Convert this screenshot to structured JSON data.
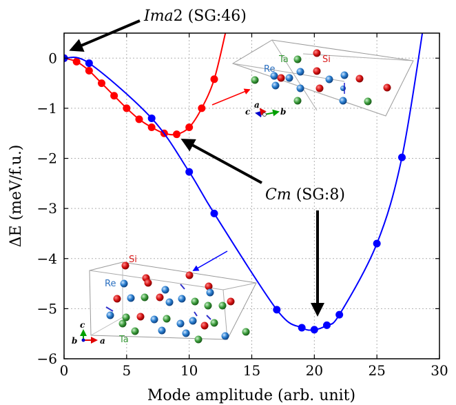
{
  "chart_data": {
    "type": "line",
    "xlabel": "Mode amplitude (arb. unit)",
    "ylabel": "ΔE (meV/f.u.)",
    "xlim": [
      0,
      30
    ],
    "ylim": [
      -6,
      0.5
    ],
    "xticks": [
      0,
      5,
      10,
      15,
      20,
      25,
      30
    ],
    "yticks": [
      0,
      -1,
      -2,
      -3,
      -4,
      -5,
      -6
    ],
    "xtick_labels": [
      "0",
      "5",
      "10",
      "15",
      "20",
      "25",
      "30"
    ],
    "ytick_labels": [
      "0",
      "−1",
      "−2",
      "−3",
      "−4",
      "−5",
      "−6"
    ],
    "grid": true,
    "series": [
      {
        "color": "#ff0000",
        "marker": "circle",
        "x": [
          0,
          1,
          2,
          3,
          4,
          5,
          6,
          7,
          8,
          9,
          10,
          11,
          12
        ],
        "y": [
          0,
          -0.07,
          -0.25,
          -0.5,
          -0.75,
          -1.0,
          -1.22,
          -1.38,
          -1.5,
          -1.52,
          -1.38,
          -1.0,
          -0.42
        ]
      },
      {
        "color": "#0000ff",
        "marker": "circle",
        "x": [
          0,
          2,
          7,
          10,
          12,
          17,
          19,
          20,
          21,
          22,
          25,
          27
        ],
        "y": [
          0,
          -0.1,
          -1.2,
          -2.27,
          -3.1,
          -5.02,
          -5.38,
          -5.42,
          -5.33,
          -5.12,
          -3.7,
          -1.98
        ]
      }
    ],
    "annotations": [
      {
        "italic": "Ima",
        "digit": "2",
        "rest": " (SG:46)"
      },
      {
        "italic": "Cm",
        "rest": " (SG:8)"
      }
    ],
    "insets": [
      {
        "labels": [
          "Ta",
          "Si",
          "Re"
        ],
        "axes": [
          "c",
          "a",
          "b"
        ]
      },
      {
        "labels": [
          "Si",
          "Re",
          "Ta"
        ],
        "axes": [
          "c",
          "b",
          "a"
        ]
      }
    ],
    "colors": {
      "red_series": "#ff0000",
      "blue_series": "#0000ff",
      "ta": "#3a9a3a",
      "si": "#d81818",
      "re": "#2a6fc0"
    }
  }
}
